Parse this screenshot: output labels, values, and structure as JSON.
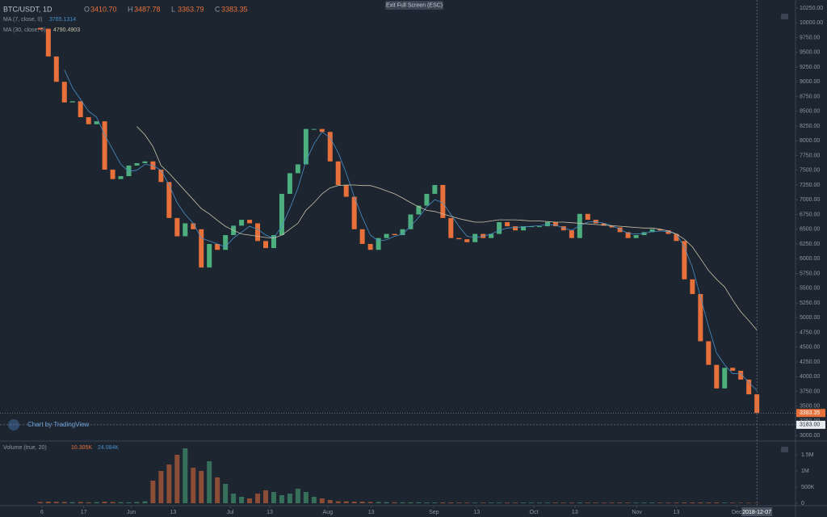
{
  "chart_data": {
    "type": "candlestick",
    "title": "BTC/USDT, 1D",
    "ohlc": [
      {
        "key": "O",
        "value": 3410.7,
        "label": "3410.70"
      },
      {
        "key": "H",
        "value": 3487.78,
        "label": "3487.78"
      },
      {
        "key": "L",
        "value": 3363.79,
        "label": "3363.79"
      },
      {
        "key": "C",
        "value": 3383.35,
        "label": "3383.35"
      }
    ],
    "colors": {
      "up": "#4caf7d",
      "down": "#e8703a"
    },
    "close": [
      9900,
      9430,
      9000,
      8650,
      8670,
      8400,
      8280,
      8330,
      7510,
      7350,
      7400,
      7580,
      7620,
      7650,
      7510,
      7300,
      6690,
      6380,
      6600,
      6500,
      5850,
      6250,
      6150,
      6400,
      6560,
      6660,
      6600,
      6300,
      6180,
      6400,
      7100,
      7450,
      7600,
      8200,
      8200,
      8150,
      7650,
      7250,
      7050,
      6500,
      6250,
      6150,
      6350,
      6420,
      6400,
      6500,
      6750,
      6900,
      7100,
      7250,
      6690,
      6350,
      6330,
      6280,
      6420,
      6350,
      6420,
      6620,
      6550,
      6480,
      6550,
      6550,
      6550,
      6620,
      6550,
      6480,
      6350,
      6760,
      6660,
      6600,
      6560,
      6530,
      6450,
      6350,
      6400,
      6450,
      6500,
      6480,
      6420,
      6300,
      5650,
      5400,
      4600,
      4200,
      3800,
      4150,
      4100,
      3950,
      3700,
      3383.35
    ],
    "moving_averages": [
      {
        "name": "MA (7, close, 0)",
        "color": "#4a90c8",
        "values": [
          null,
          null,
          null,
          9200,
          8900,
          8700,
          8500,
          8400,
          8100,
          7850,
          7600,
          7480,
          7500,
          7600,
          7580,
          7500,
          7250,
          6950,
          6750,
          6600,
          6350,
          6300,
          6250,
          6200,
          6350,
          6450,
          6550,
          6500,
          6400,
          6350,
          6550,
          6850,
          7200,
          7650,
          7950,
          8150,
          8050,
          7800,
          7450,
          7050,
          6700,
          6400,
          6300,
          6320,
          6380,
          6420,
          6550,
          6700,
          6880,
          7000,
          6950,
          6750,
          6550,
          6380,
          6360,
          6380,
          6420,
          6480,
          6520,
          6530,
          6540,
          6550,
          6560,
          6580,
          6570,
          6520,
          6480,
          6560,
          6620,
          6630,
          6600,
          6560,
          6500,
          6430,
          6420,
          6430,
          6460,
          6470,
          6460,
          6420,
          6200,
          5850,
          5350,
          4850,
          4400,
          4200,
          4050,
          4050,
          3900,
          3765.1314
        ]
      },
      {
        "name": "MA (30, close, 0)",
        "color": "#c9c2a8",
        "values": [
          null,
          null,
          null,
          null,
          null,
          null,
          null,
          null,
          null,
          null,
          null,
          null,
          8240,
          8100,
          7900,
          7580,
          7450,
          7300,
          7150,
          7000,
          6850,
          6760,
          6650,
          6550,
          6480,
          6420,
          6400,
          6380,
          6360,
          6350,
          6400,
          6500,
          6600,
          6820,
          6950,
          7100,
          7200,
          7240,
          7250,
          7250,
          7240,
          7240,
          7200,
          7150,
          7100,
          7030,
          6950,
          6880,
          6820,
          6800,
          6760,
          6720,
          6680,
          6650,
          6620,
          6620,
          6640,
          6660,
          6660,
          6660,
          6650,
          6640,
          6640,
          6630,
          6620,
          6620,
          6610,
          6600,
          6590,
          6580,
          6570,
          6560,
          6550,
          6540,
          6530,
          6520,
          6520,
          6500,
          6470,
          6420,
          6330,
          6200,
          6000,
          5800,
          5650,
          5520,
          5300,
          5100,
          4950,
          4790.4903
        ]
      }
    ],
    "xlim": [
      -5,
      93.8
    ],
    "ylim": [
      2921,
      10387
    ],
    "yticks": [
      {
        "value": 3000,
        "label": "3000.00"
      },
      {
        "value": 3250,
        "label": "3250.00"
      },
      {
        "value": 3500,
        "label": "3500.00"
      },
      {
        "value": 3750,
        "label": "3750.00"
      },
      {
        "value": 4000,
        "label": "4000.00"
      },
      {
        "value": 4250,
        "label": "4250.00"
      },
      {
        "value": 4500,
        "label": "4500.00"
      },
      {
        "value": 4750,
        "label": "4750.00"
      },
      {
        "value": 5000,
        "label": "5000.00"
      },
      {
        "value": 5250,
        "label": "5250.00"
      },
      {
        "value": 5500,
        "label": "5500.00"
      },
      {
        "value": 5750,
        "label": "5750.00"
      },
      {
        "value": 6000,
        "label": "6000.00"
      },
      {
        "value": 6250,
        "label": "6250.00"
      },
      {
        "value": 6500,
        "label": "6500.00"
      },
      {
        "value": 6750,
        "label": "6750.00"
      },
      {
        "value": 7000,
        "label": "7000.00"
      },
      {
        "value": 7250,
        "label": "7250.00"
      },
      {
        "value": 7500,
        "label": "7500.00"
      },
      {
        "value": 7750,
        "label": "7750.00"
      },
      {
        "value": 8000,
        "label": "8000.00"
      },
      {
        "value": 8250,
        "label": "8250.00"
      },
      {
        "value": 8500,
        "label": "8500.00"
      },
      {
        "value": 8750,
        "label": "8750.00"
      },
      {
        "value": 9000,
        "label": "9000.00"
      },
      {
        "value": 9250,
        "label": "9250.00"
      },
      {
        "value": 9500,
        "label": "9500.00"
      },
      {
        "value": 9750,
        "label": "9750.00"
      },
      {
        "value": 10000,
        "label": "10000.00"
      },
      {
        "value": 10250,
        "label": "10250.00"
      }
    ],
    "xticks": [
      {
        "value": 0.2,
        "label": "6"
      },
      {
        "value": 5.4,
        "label": "17"
      },
      {
        "value": 11.3,
        "label": "Jun"
      },
      {
        "value": 16.5,
        "label": "13"
      },
      {
        "value": 23.6,
        "label": "Jul"
      },
      {
        "value": 28.5,
        "label": "13"
      },
      {
        "value": 35.7,
        "label": "Aug"
      },
      {
        "value": 41.1,
        "label": "13"
      },
      {
        "value": 48.9,
        "label": "Sep"
      },
      {
        "value": 54.2,
        "label": "13"
      },
      {
        "value": 61.3,
        "label": "Oct"
      },
      {
        "value": 66.4,
        "label": "13"
      },
      {
        "value": 74.1,
        "label": "Nov"
      },
      {
        "value": 79,
        "label": "13"
      },
      {
        "value": 86.5,
        "label": "Dec"
      }
    ],
    "crosshair": {
      "date": "2018-12-07",
      "price": {
        "value": 3183,
        "label": "3183.00"
      }
    },
    "volume": {
      "name": "Volume (true, 20)",
      "legend_values": [
        "10.305K",
        "24.084K"
      ],
      "values": [
        40000,
        50000,
        45000,
        40000,
        35000,
        40000,
        30000,
        35000,
        50000,
        40000,
        35000,
        30000,
        40000,
        60000,
        700000,
        1000000,
        1200000,
        1500000,
        1700000,
        1100000,
        1000000,
        1300000,
        800000,
        600000,
        300000,
        200000,
        150000,
        300000,
        400000,
        350000,
        250000,
        300000,
        450000,
        350000,
        200000,
        150000,
        100000,
        60000,
        60000,
        50000,
        50000,
        40000,
        40000,
        35000,
        30000,
        30000,
        30000,
        30000,
        25000,
        25000,
        25000,
        25000,
        20000,
        20000,
        20000,
        20000,
        20000,
        20000,
        20000,
        20000,
        20000,
        20000,
        20000,
        20000,
        20000,
        20000,
        20000,
        25000,
        20000,
        20000,
        20000,
        20000,
        20000,
        20000,
        20000,
        20000,
        20000,
        20000,
        20000,
        20000,
        25000,
        25000,
        25000,
        25000,
        25000,
        20000,
        20000,
        15000,
        15000,
        10305
      ],
      "ylim": [
        0,
        1875000
      ],
      "yticks": [
        0,
        {
          "value": 500000,
          "label": "500K"
        },
        {
          "value": 1000000,
          "label": "1M"
        },
        {
          "value": 1500000,
          "label": "1.5M"
        }
      ]
    },
    "exit_button": "Exit Full Screen (ESC)",
    "branding": "Chart by TradingView"
  }
}
